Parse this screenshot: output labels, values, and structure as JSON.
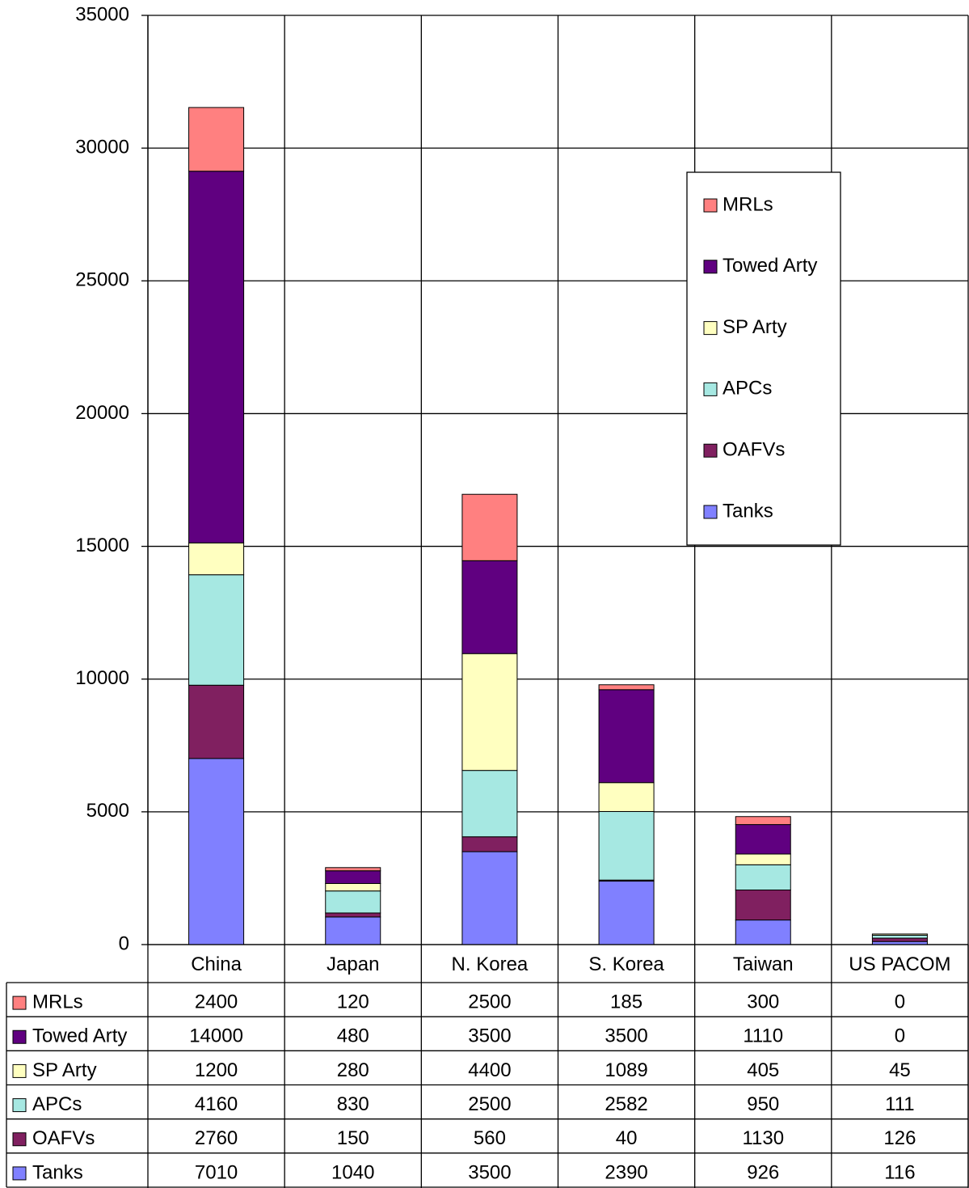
{
  "chart_data": {
    "type": "stacked_bar",
    "categories": [
      "China",
      "Japan",
      "N. Korea",
      "S. Korea",
      "Taiwan",
      "US PACOM"
    ],
    "series": [
      {
        "name": "Tanks",
        "color": "#8080ff",
        "values": [
          7010,
          1040,
          3500,
          2390,
          926,
          116
        ]
      },
      {
        "name": "OAFVs",
        "color": "#802060",
        "values": [
          2760,
          150,
          560,
          40,
          1130,
          126
        ]
      },
      {
        "name": "APCs",
        "color": "#a6e8e2",
        "values": [
          4160,
          830,
          2500,
          2582,
          950,
          111
        ]
      },
      {
        "name": "SP Arty",
        "color": "#ffffc0",
        "values": [
          1200,
          280,
          4400,
          1089,
          405,
          45
        ]
      },
      {
        "name": "Towed Arty",
        "color": "#600080",
        "values": [
          14000,
          480,
          3500,
          3500,
          1110,
          0
        ]
      },
      {
        "name": "MRLs",
        "color": "#ff8080",
        "values": [
          2400,
          120,
          2500,
          185,
          300,
          0
        ]
      }
    ],
    "ylim": [
      0,
      35000
    ],
    "yticks": [
      0,
      5000,
      10000,
      15000,
      20000,
      25000,
      30000,
      35000
    ],
    "grid": true,
    "legend": "right",
    "data_table": true
  }
}
